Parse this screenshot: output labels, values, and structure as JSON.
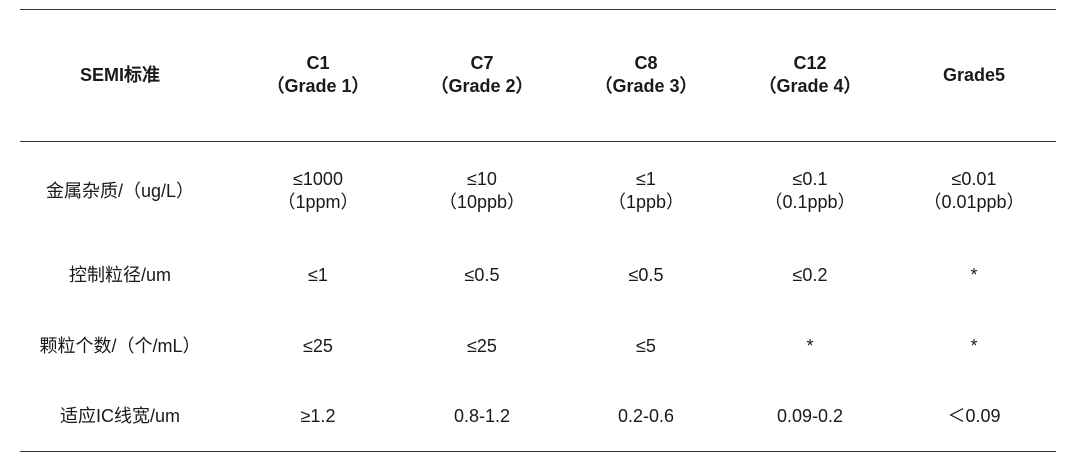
{
  "table": {
    "header": {
      "label": "SEMI标准",
      "columns": [
        {
          "line1": "C1",
          "line2": "（Grade 1）"
        },
        {
          "line1": "C7",
          "line2": "（Grade 2）"
        },
        {
          "line1": "C8",
          "line2": "（Grade 3）"
        },
        {
          "line1": "C12",
          "line2": "（Grade 4）"
        },
        {
          "line1": "Grade5",
          "line2": ""
        }
      ]
    },
    "rows": [
      {
        "label": "金属杂质/（ug/L）",
        "cells": [
          {
            "line1": "≤1000",
            "line2": "（1ppm）"
          },
          {
            "line1": "≤10",
            "line2": "（10ppb）"
          },
          {
            "line1": "≤1",
            "line2": "（1ppb）"
          },
          {
            "line1": "≤0.1",
            "line2": "（0.1ppb）"
          },
          {
            "line1": "≤0.01",
            "line2": "（0.01ppb）"
          }
        ]
      },
      {
        "label": "控制粒径/um",
        "cells": [
          {
            "line1": "≤1"
          },
          {
            "line1": "≤0.5"
          },
          {
            "line1": "≤0.5"
          },
          {
            "line1": "≤0.2"
          },
          {
            "line1": "*"
          }
        ]
      },
      {
        "label": "颗粒个数/（个/mL）",
        "cells": [
          {
            "line1": "≤25"
          },
          {
            "line1": "≤25"
          },
          {
            "line1": "≤5"
          },
          {
            "line1": "*"
          },
          {
            "line1": "*"
          }
        ]
      },
      {
        "label": "适应IC线宽/um",
        "cells": [
          {
            "line1": "≥1.2"
          },
          {
            "line1": "0.8-1.2"
          },
          {
            "line1": "0.2-0.6"
          },
          {
            "line1": "0.09-0.2"
          },
          {
            "line1": "＜0.09"
          }
        ]
      }
    ]
  }
}
